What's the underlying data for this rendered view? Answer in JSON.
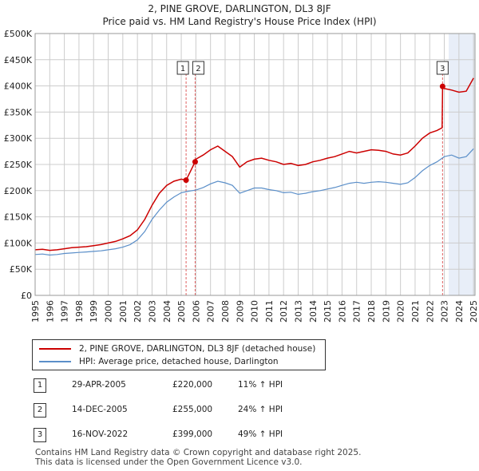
{
  "title_line1": "2, PINE GROVE, DARLINGTON, DL3 8JF",
  "title_line2": "Price paid vs. HM Land Registry's House Price Index (HPI)",
  "colors": {
    "property": "#cc0000",
    "hpi": "#5b8fc9",
    "shade": "#e8eef8",
    "grid": "#cccccc"
  },
  "legend": {
    "property_label": "2, PINE GROVE, DARLINGTON, DL3 8JF (detached house)",
    "hpi_label": "HPI: Average price, detached house, Darlington"
  },
  "sales": [
    {
      "num": "1",
      "date": "29-APR-2005",
      "price": "£220,000",
      "hpi_change": "11% ↑ HPI"
    },
    {
      "num": "2",
      "date": "14-DEC-2005",
      "price": "£255,000",
      "hpi_change": "24% ↑ HPI"
    },
    {
      "num": "3",
      "date": "16-NOV-2022",
      "price": "£399,000",
      "hpi_change": "49% ↑ HPI"
    }
  ],
  "footer_line1": "Contains HM Land Registry data © Crown copyright and database right 2025.",
  "footer_line2": "This data is licensed under the Open Government Licence v3.0.",
  "chart_data": {
    "type": "line",
    "title": "Price paid vs. HM Land Registry's House Price Index (HPI)",
    "xlim": [
      1995,
      2025.1
    ],
    "ylim": [
      0,
      500000
    ],
    "x_ticks": [
      1995,
      1996,
      1997,
      1998,
      1999,
      2000,
      2001,
      2002,
      2003,
      2004,
      2005,
      2006,
      2007,
      2008,
      2009,
      2010,
      2011,
      2012,
      2013,
      2014,
      2015,
      2016,
      2017,
      2018,
      2019,
      2020,
      2021,
      2022,
      2023,
      2024,
      2025
    ],
    "y_ticks": [
      0,
      50000,
      100000,
      150000,
      200000,
      250000,
      300000,
      350000,
      400000,
      450000,
      500000
    ],
    "y_tick_labels": [
      "£0",
      "£50K",
      "£100K",
      "£150K",
      "£200K",
      "£250K",
      "£300K",
      "£350K",
      "£400K",
      "£450K",
      "£500K"
    ],
    "future_shade_from": 2023.3,
    "sale_markers": [
      {
        "label": "1",
        "x": 2005.33,
        "y": 220000
      },
      {
        "label": "2",
        "x": 2005.95,
        "y": 255000
      },
      {
        "label": "3",
        "x": 2022.88,
        "y": 399000
      }
    ],
    "series": [
      {
        "name": "2, PINE GROVE, DARLINGTON, DL3 8JF (detached house)",
        "x": [
          1995,
          1995.5,
          1996,
          1996.5,
          1997,
          1997.5,
          1998,
          1998.5,
          1999,
          1999.5,
          2000,
          2000.5,
          2001,
          2001.5,
          2002,
          2002.5,
          2003,
          2003.5,
          2004,
          2004.5,
          2005,
          2005.33,
          2005.95,
          2006,
          2006.5,
          2007,
          2007.5,
          2008,
          2008.5,
          2009,
          2009.5,
          2010,
          2010.5,
          2011,
          2011.5,
          2012,
          2012.5,
          2013,
          2013.5,
          2014,
          2014.5,
          2015,
          2015.5,
          2016,
          2016.5,
          2017,
          2017.5,
          2018,
          2018.5,
          2019,
          2019.5,
          2020,
          2020.5,
          2021,
          2021.5,
          2022,
          2022.5,
          2022.85,
          2022.88,
          2023,
          2023.5,
          2024,
          2024.5,
          2025
        ],
        "y": [
          87000,
          88000,
          86000,
          87000,
          89000,
          91000,
          92000,
          93000,
          95000,
          97000,
          100000,
          103000,
          108000,
          114000,
          125000,
          145000,
          172000,
          195000,
          210000,
          218000,
          222000,
          220000,
          255000,
          260000,
          268000,
          278000,
          285000,
          275000,
          265000,
          245000,
          255000,
          260000,
          262000,
          258000,
          255000,
          250000,
          252000,
          248000,
          250000,
          255000,
          258000,
          262000,
          265000,
          270000,
          275000,
          272000,
          275000,
          278000,
          277000,
          275000,
          270000,
          268000,
          272000,
          285000,
          300000,
          310000,
          315000,
          320000,
          399000,
          395000,
          392000,
          388000,
          390000,
          415000
        ]
      },
      {
        "name": "HPI: Average price, detached house, Darlington",
        "x": [
          1995,
          1995.5,
          1996,
          1996.5,
          1997,
          1997.5,
          1998,
          1998.5,
          1999,
          1999.5,
          2000,
          2000.5,
          2001,
          2001.5,
          2002,
          2002.5,
          2003,
          2003.5,
          2004,
          2004.5,
          2005,
          2005.5,
          2006,
          2006.5,
          2007,
          2007.5,
          2008,
          2008.5,
          2009,
          2009.5,
          2010,
          2010.5,
          2011,
          2011.5,
          2012,
          2012.5,
          2013,
          2013.5,
          2014,
          2014.5,
          2015,
          2015.5,
          2016,
          2016.5,
          2017,
          2017.5,
          2018,
          2018.5,
          2019,
          2019.5,
          2020,
          2020.5,
          2021,
          2021.5,
          2022,
          2022.5,
          2023,
          2023.5,
          2024,
          2024.5,
          2025
        ],
        "y": [
          78000,
          79000,
          77000,
          78000,
          80000,
          81000,
          82000,
          83000,
          84000,
          85000,
          87000,
          89000,
          92000,
          97000,
          106000,
          122000,
          145000,
          163000,
          178000,
          188000,
          196000,
          199000,
          201000,
          206000,
          213000,
          218000,
          215000,
          210000,
          195000,
          200000,
          205000,
          205000,
          202000,
          200000,
          196000,
          197000,
          193000,
          195000,
          198000,
          200000,
          203000,
          206000,
          210000,
          214000,
          216000,
          214000,
          216000,
          217000,
          216000,
          214000,
          212000,
          215000,
          225000,
          238000,
          248000,
          255000,
          265000,
          268000,
          262000,
          265000,
          280000
        ]
      }
    ]
  }
}
